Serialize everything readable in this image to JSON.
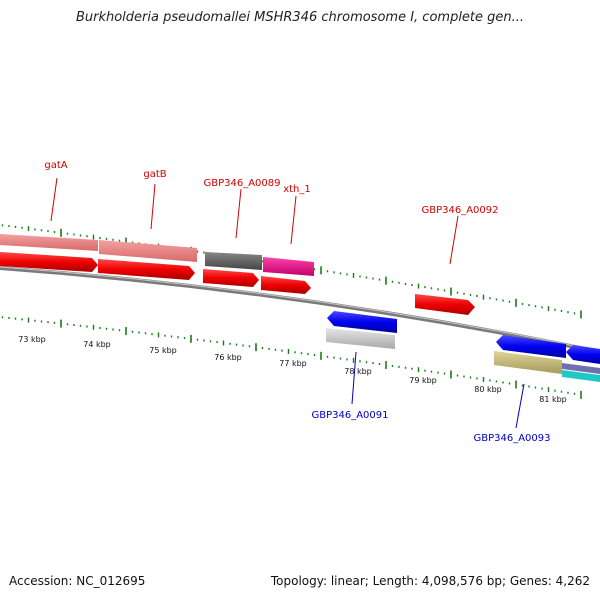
{
  "title": "Burkholderia pseudomallei MSHR346 chromosome I, complete gen...",
  "footer": {
    "accession": "Accession: NC_012695",
    "summary": "Topology: linear; Length: 4,098,576 bp; Genes: 4,262"
  },
  "scale_labels": [
    "73 kbp",
    "74 kbp",
    "75 kbp",
    "76 kbp",
    "77 kbp",
    "78 kbp",
    "79 kbp",
    "80 kbp",
    "81 kbp"
  ],
  "gene_labels": {
    "gatA": "gatA",
    "gatB": "gatB",
    "a0089": "GBP346_A0089",
    "xth1": "xth_1",
    "a0092": "GBP346_A0092",
    "a0091": "GBP346_A0091",
    "a0093": "GBP346_A0093"
  },
  "colors": {
    "forward_label": "#d00000",
    "reverse_label": "#0000c0",
    "cds_forward": "#ee0000",
    "cds_reverse": "#0000ee",
    "tick": "#1a7a1a",
    "backbone": "#808080"
  }
}
